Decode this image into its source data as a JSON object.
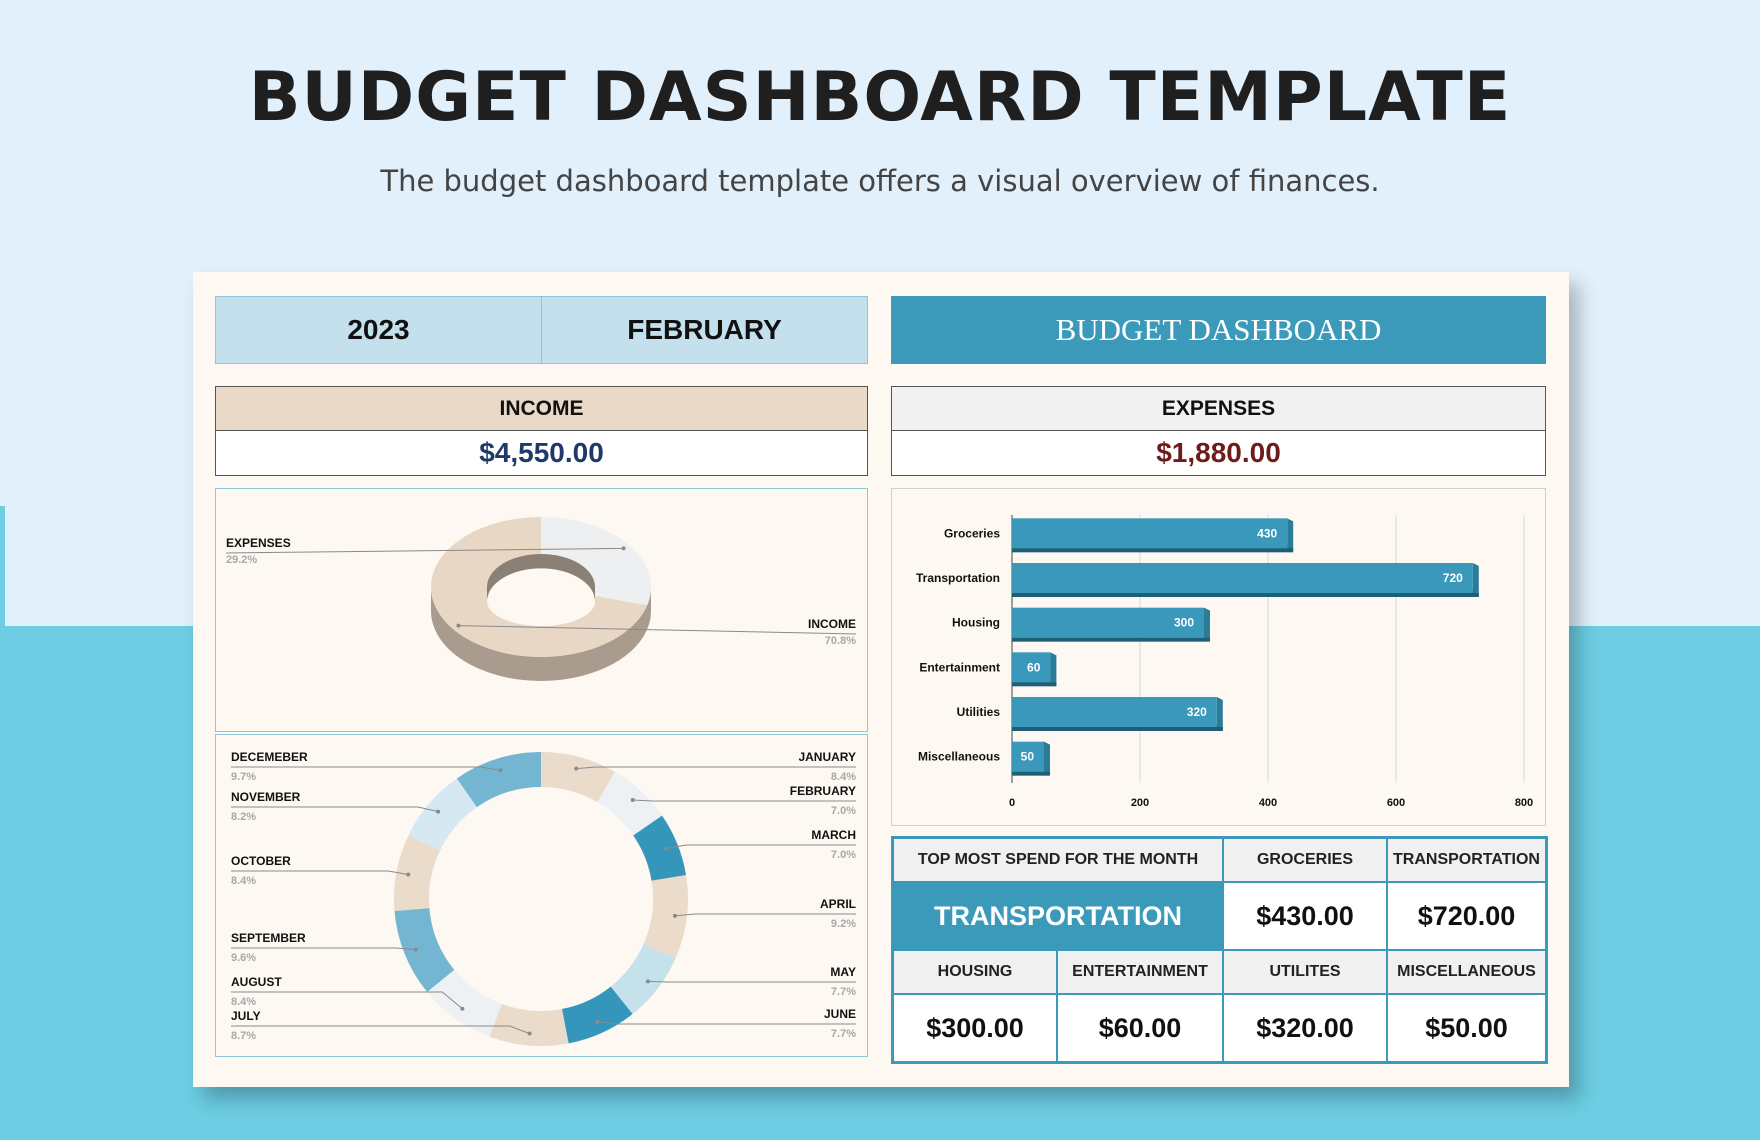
{
  "page": {
    "title": "BUDGET DASHBOARD TEMPLATE",
    "subtitle": "The budget dashboard template offers a visual overview of finances."
  },
  "header": {
    "year": "2023",
    "month": "FEBRUARY",
    "dashboard_title": "BUDGET DASHBOARD"
  },
  "income": {
    "label": "INCOME",
    "value": "$4,550.00",
    "color": "#1f3a68"
  },
  "expenses": {
    "label": "EXPENSES",
    "value": "$1,880.00",
    "color": "#6d1b1b"
  },
  "top_spend": {
    "label": "TOP MOST SPEND FOR THE MONTH",
    "value": "TRANSPORTATION",
    "groceries_label": "GROCERIES",
    "groceries_value": "$430.00",
    "transportation_label": "TRANSPORTATION",
    "transportation_value": "$720.00",
    "housing_label": "HOUSING",
    "housing_value": "$300.00",
    "entertainment_label": "ENTERTAINMENT",
    "entertainment_value": "$60.00",
    "utilities_label": "UTILITES",
    "utilities_value": "$320.00",
    "misc_label": "MISCELLANEOUS",
    "misc_value": "$50.00"
  },
  "colors": {
    "accent": "#3b9aba",
    "light_blue": "#c3e0ec",
    "tan": "#ead9c7",
    "grey": "#f2f1f1"
  },
  "chart_data": [
    {
      "type": "pie",
      "categories": [
        "EXPENSES",
        "INCOME"
      ],
      "values": [
        29.2,
        70.8
      ],
      "labels": [
        "29.2%",
        "70.8%"
      ],
      "colors": [
        "#eeeff0",
        "#e8d7c4"
      ]
    },
    {
      "type": "pie",
      "categories": [
        "JANUARY",
        "FEBRUARY",
        "MARCH",
        "APRIL",
        "MAY",
        "JUNE",
        "JULY",
        "AUGUST",
        "SEPTEMBER",
        "OCTOBER",
        "NOVEMBER",
        "DECEMEBER"
      ],
      "values": [
        8.4,
        7.0,
        7.0,
        9.2,
        7.7,
        7.7,
        8.7,
        8.4,
        9.6,
        8.4,
        8.2,
        9.7
      ],
      "labels": [
        "8.4%",
        "7.0%",
        "7.0%",
        "9.2%",
        "7.7%",
        "7.7%",
        "8.7%",
        "8.4%",
        "9.6%",
        "8.4%",
        "8.2%",
        "9.7%"
      ],
      "colors": [
        "#eadbcb",
        "#eef1f3",
        "#3596bb",
        "#eadbcb",
        "#c4e1ec",
        "#3596bb",
        "#eadbcb",
        "#eef1f3",
        "#74b6d2",
        "#eadbcb",
        "#d6e8f1",
        "#74b6d2"
      ]
    },
    {
      "type": "bar",
      "orientation": "horizontal",
      "categories": [
        "Groceries",
        "Transportation",
        "Housing",
        "Entertainment",
        "Utilities",
        "Miscellaneous"
      ],
      "values": [
        430,
        720,
        300,
        60,
        320,
        50
      ],
      "value_labels": [
        "430",
        "720",
        "300",
        "60",
        "320",
        "50"
      ],
      "xlim": [
        0,
        800
      ],
      "xticks": [
        "0",
        "200",
        "400",
        "600",
        "800"
      ],
      "grid": true
    }
  ]
}
